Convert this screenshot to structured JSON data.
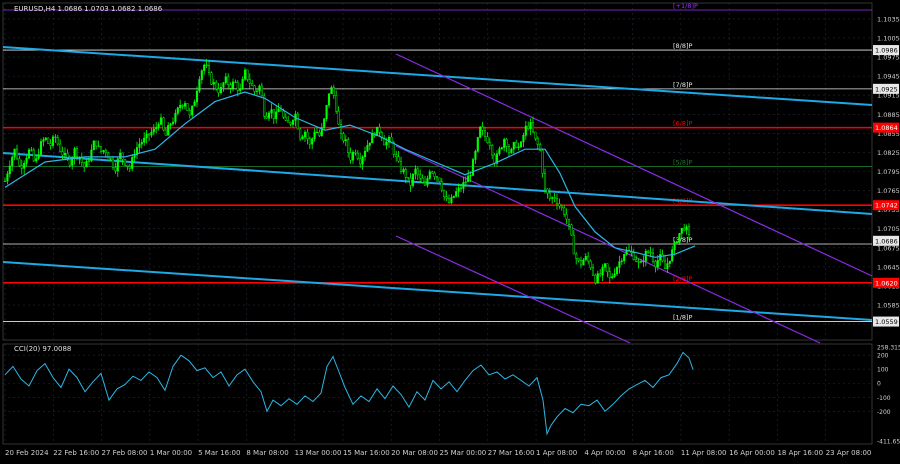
{
  "window": {
    "title": "EURUSD,H4  1.0686 1.0703 1.0682 1.0686",
    "indicator_title": "CCI(20) 97.0088"
  },
  "colors": {
    "background": "#000000",
    "grid": "#1f2a3a",
    "candle": "#00ff00",
    "ma": "#2db6e6",
    "trend_channel": "#1fa8e6",
    "purple_channel": "#8a2be2",
    "murrey_red": "#ff0000",
    "murrey_white": "#e8e8e8",
    "axis_text": "#cfcfcf",
    "price_tag_bg": "#e8e8e8",
    "price_tag_red_bg": "#ff0000",
    "cci_line": "#2db6e6"
  },
  "levels": [
    {
      "label": "[+1/8]P",
      "price": 1.1049,
      "color": "#9b30ff",
      "tag": ""
    },
    {
      "label": "[8/8]P",
      "price": 1.0986,
      "color": "#e8e8e8",
      "tag": "1.0986"
    },
    {
      "label": "[7/8]P",
      "price": 1.0925,
      "color": "#e8e8e8",
      "tag": "1.0925"
    },
    {
      "label": "[6/8]P",
      "price": 1.0864,
      "color": "#ff0000",
      "tag": "1.0864"
    },
    {
      "label": "[5/8]P",
      "price": 1.0803,
      "color": "#1a7a2a",
      "tag": ""
    },
    {
      "label": "[4/8]P",
      "price": 1.0742,
      "color": "#ff0000",
      "tag": "1.0742"
    },
    {
      "label": "[3/8]P",
      "price": 1.0681,
      "color": "#e8e8e8",
      "tag": ""
    },
    {
      "label": "[2/8]P",
      "price": 1.062,
      "color": "#ff0000",
      "tag": "1.0620"
    },
    {
      "label": "[1/8]P",
      "price": 1.0559,
      "color": "#e8e8e8",
      "tag": "1.0559"
    }
  ],
  "current_price_tag": "1.0686",
  "chart_data": [
    {
      "type": "candlestick",
      "title": "EURUSD,H4  1.0686 1.0703 1.0682 1.0686",
      "ylim": [
        1.053,
        1.106
      ],
      "y_ticks": [
        "1.1035",
        "1.1005",
        "1.0975",
        "1.0945",
        "1.0915",
        "1.0885",
        "1.0855",
        "1.0825",
        "1.0795",
        "1.0765",
        "1.0735",
        "1.0705",
        "1.0675",
        "1.0645",
        "1.0615",
        "1.0585",
        "1.0555"
      ],
      "x_ticks": [
        "20 Feb 2024",
        "22 Feb 16:00",
        "27 Feb 08:00",
        "1 Mar 00:00",
        "5 Mar 16:00",
        "8 Mar 08:00",
        "13 Mar 00:00",
        "15 Mar 16:00",
        "20 Mar 08:00",
        "25 Mar 00:00",
        "27 Mar 16:00",
        "1 Apr 08:00",
        "4 Apr 00:00",
        "8 Apr 16:00",
        "11 Apr 08:00",
        "16 Apr 00:00",
        "18 Apr 16:00",
        "23 Apr 08:00"
      ],
      "close_path": [
        [
          0,
          1.078
        ],
        [
          5,
          1.081
        ],
        [
          10,
          1.083
        ],
        [
          15,
          1.08
        ],
        [
          20,
          1.0815
        ],
        [
          25,
          1.083
        ],
        [
          30,
          1.0805
        ],
        [
          35,
          1.0835
        ],
        [
          40,
          1.0848
        ],
        [
          45,
          1.0835
        ],
        [
          50,
          1.085
        ],
        [
          55,
          1.083
        ],
        [
          60,
          1.0818
        ],
        [
          65,
          1.081
        ],
        [
          70,
          1.083
        ],
        [
          75,
          1.0815
        ],
        [
          80,
          1.08
        ],
        [
          85,
          1.082
        ],
        [
          90,
          1.0845
        ],
        [
          95,
          1.0825
        ],
        [
          100,
          1.083
        ],
        [
          105,
          1.0815
        ],
        [
          110,
          1.08
        ],
        [
          115,
          1.0822
        ],
        [
          120,
          1.081
        ],
        [
          125,
          1.08
        ],
        [
          130,
          1.0828
        ],
        [
          135,
          1.084
        ],
        [
          140,
          1.0845
        ],
        [
          145,
          1.0855
        ],
        [
          150,
          1.086
        ],
        [
          155,
          1.088
        ],
        [
          160,
          1.0848
        ],
        [
          165,
          1.087
        ],
        [
          170,
          1.088
        ],
        [
          175,
          1.09
        ],
        [
          180,
          1.0905
        ],
        [
          185,
          1.088
        ],
        [
          190,
          1.091
        ],
        [
          195,
          1.095
        ],
        [
          200,
          1.0965
        ],
        [
          205,
          1.094
        ],
        [
          210,
          1.093
        ],
        [
          215,
          1.092
        ],
        [
          220,
          1.094
        ],
        [
          225,
          1.093
        ],
        [
          230,
          1.0935
        ],
        [
          235,
          1.092
        ],
        [
          240,
          1.095
        ],
        [
          245,
          1.0935
        ],
        [
          250,
          1.092
        ],
        [
          255,
          1.093
        ],
        [
          260,
          1.088
        ],
        [
          265,
          1.0895
        ],
        [
          270,
          1.0878
        ],
        [
          275,
          1.0898
        ],
        [
          280,
          1.087
        ],
        [
          285,
          1.087
        ],
        [
          290,
          1.0888
        ],
        [
          295,
          1.085
        ],
        [
          300,
          1.0858
        ],
        [
          305,
          1.0835
        ],
        [
          310,
          1.0862
        ],
        [
          315,
          1.085
        ],
        [
          320,
          1.088
        ],
        [
          325,
          1.093
        ],
        [
          330,
          1.091
        ],
        [
          335,
          1.085
        ],
        [
          340,
          1.0845
        ],
        [
          345,
          1.0815
        ],
        [
          350,
          1.083
        ],
        [
          355,
          1.0812
        ],
        [
          360,
          1.083
        ],
        [
          365,
          1.0845
        ],
        [
          370,
          1.0858
        ],
        [
          375,
          1.086
        ],
        [
          380,
          1.0838
        ],
        [
          385,
          1.0845
        ],
        [
          390,
          1.082
        ],
        [
          395,
          1.08
        ],
        [
          400,
          1.0792
        ],
        [
          405,
          1.0772
        ],
        [
          410,
          1.0798
        ],
        [
          415,
          1.0782
        ],
        [
          420,
          1.077
        ],
        [
          425,
          1.08
        ],
        [
          430,
          1.079
        ],
        [
          435,
          1.0782
        ],
        [
          440,
          1.075
        ],
        [
          445,
          1.0745
        ],
        [
          450,
          1.076
        ],
        [
          455,
          1.0768
        ],
        [
          460,
          1.0778
        ],
        [
          465,
          1.079
        ],
        [
          470,
          1.082
        ],
        [
          475,
          1.0862
        ],
        [
          480,
          1.085
        ],
        [
          485,
          1.084
        ],
        [
          490,
          1.081
        ],
        [
          495,
          1.083
        ],
        [
          500,
          1.085
        ],
        [
          505,
          1.082
        ],
        [
          510,
          1.084
        ],
        [
          515,
          1.083
        ],
        [
          520,
          1.0862
        ],
        [
          525,
          1.087
        ],
        [
          530,
          1.0845
        ],
        [
          535,
          1.083
        ],
        [
          540,
          1.0765
        ],
        [
          545,
          1.0752
        ],
        [
          550,
          1.0755
        ],
        [
          555,
          1.074
        ],
        [
          560,
          1.073
        ],
        [
          565,
          1.07
        ],
        [
          570,
          1.0662
        ],
        [
          575,
          1.0648
        ],
        [
          580,
          1.066
        ],
        [
          585,
          1.065
        ],
        [
          590,
          1.0625
        ],
        [
          595,
          1.0632
        ],
        [
          600,
          1.0645
        ],
        [
          605,
          1.0625
        ],
        [
          610,
          1.064
        ],
        [
          615,
          1.0655
        ],
        [
          620,
          1.067
        ],
        [
          625,
          1.0668
        ],
        [
          630,
          1.066
        ],
        [
          635,
          1.0645
        ],
        [
          640,
          1.0665
        ],
        [
          645,
          1.067
        ],
        [
          650,
          1.065
        ],
        [
          655,
          1.066
        ],
        [
          660,
          1.0642
        ],
        [
          665,
          1.066
        ],
        [
          670,
          1.068
        ],
        [
          675,
          1.07
        ],
        [
          680,
          1.071
        ],
        [
          685,
          1.0686
        ]
      ],
      "ma_path": [
        [
          0,
          1.077
        ],
        [
          40,
          1.081
        ],
        [
          80,
          1.0818
        ],
        [
          120,
          1.0818
        ],
        [
          150,
          1.083
        ],
        [
          180,
          1.087
        ],
        [
          210,
          1.0905
        ],
        [
          240,
          1.092
        ],
        [
          260,
          1.091
        ],
        [
          290,
          1.088
        ],
        [
          320,
          1.086
        ],
        [
          345,
          1.0868
        ],
        [
          375,
          1.085
        ],
        [
          400,
          1.083
        ],
        [
          430,
          1.081
        ],
        [
          460,
          1.079
        ],
        [
          490,
          1.0808
        ],
        [
          520,
          1.083
        ],
        [
          540,
          1.083
        ],
        [
          555,
          1.0792
        ],
        [
          570,
          1.074
        ],
        [
          590,
          1.07
        ],
        [
          610,
          1.0675
        ],
        [
          630,
          1.0668
        ],
        [
          650,
          1.066
        ],
        [
          670,
          1.0665
        ],
        [
          690,
          1.0678
        ]
      ]
    },
    {
      "type": "line",
      "title": "CCI(20) 97.0088",
      "ylim": [
        -411.6541,
        258.3154
      ],
      "y_ticks": [
        "258.3154",
        "200",
        "100",
        "0",
        "-100",
        "-200",
        "-411.6541"
      ],
      "values": [
        [
          0,
          60
        ],
        [
          8,
          120
        ],
        [
          16,
          30
        ],
        [
          24,
          -20
        ],
        [
          32,
          90
        ],
        [
          40,
          140
        ],
        [
          48,
          40
        ],
        [
          56,
          -30
        ],
        [
          64,
          100
        ],
        [
          72,
          40
        ],
        [
          80,
          -60
        ],
        [
          88,
          10
        ],
        [
          96,
          70
        ],
        [
          104,
          -120
        ],
        [
          112,
          -40
        ],
        [
          120,
          -10
        ],
        [
          128,
          50
        ],
        [
          136,
          20
        ],
        [
          144,
          80
        ],
        [
          152,
          40
        ],
        [
          160,
          -50
        ],
        [
          168,
          120
        ],
        [
          176,
          200
        ],
        [
          184,
          160
        ],
        [
          192,
          90
        ],
        [
          200,
          110
        ],
        [
          208,
          40
        ],
        [
          216,
          80
        ],
        [
          224,
          -20
        ],
        [
          232,
          60
        ],
        [
          240,
          100
        ],
        [
          248,
          10
        ],
        [
          256,
          -60
        ],
        [
          262,
          -200
        ],
        [
          268,
          -120
        ],
        [
          276,
          -160
        ],
        [
          284,
          -110
        ],
        [
          292,
          -150
        ],
        [
          300,
          -90
        ],
        [
          308,
          -130
        ],
        [
          316,
          -70
        ],
        [
          322,
          120
        ],
        [
          328,
          190
        ],
        [
          334,
          80
        ],
        [
          340,
          -30
        ],
        [
          348,
          -150
        ],
        [
          356,
          -90
        ],
        [
          364,
          -130
        ],
        [
          372,
          -40
        ],
        [
          380,
          -110
        ],
        [
          388,
          -20
        ],
        [
          396,
          -80
        ],
        [
          404,
          -170
        ],
        [
          412,
          -60
        ],
        [
          420,
          -120
        ],
        [
          428,
          20
        ],
        [
          436,
          -40
        ],
        [
          444,
          10
        ],
        [
          452,
          -60
        ],
        [
          460,
          20
        ],
        [
          468,
          90
        ],
        [
          476,
          130
        ],
        [
          484,
          60
        ],
        [
          492,
          80
        ],
        [
          500,
          30
        ],
        [
          508,
          60
        ],
        [
          516,
          20
        ],
        [
          524,
          -20
        ],
        [
          532,
          40
        ],
        [
          538,
          -120
        ],
        [
          542,
          -360
        ],
        [
          546,
          -300
        ],
        [
          552,
          -240
        ],
        [
          560,
          -180
        ],
        [
          568,
          -210
        ],
        [
          576,
          -150
        ],
        [
          584,
          -160
        ],
        [
          592,
          -120
        ],
        [
          600,
          -200
        ],
        [
          608,
          -150
        ],
        [
          616,
          -90
        ],
        [
          624,
          -40
        ],
        [
          632,
          -10
        ],
        [
          640,
          20
        ],
        [
          648,
          -30
        ],
        [
          656,
          40
        ],
        [
          664,
          60
        ],
        [
          672,
          140
        ],
        [
          678,
          220
        ],
        [
          684,
          180
        ],
        [
          688,
          97
        ]
      ]
    }
  ]
}
